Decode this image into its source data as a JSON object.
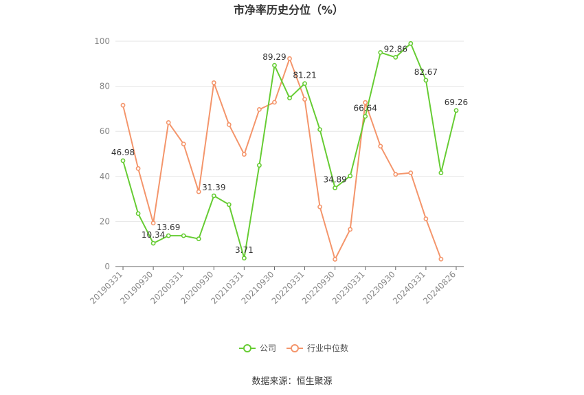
{
  "chart_data": {
    "type": "line",
    "title": "市净率历史分位（%）",
    "xlabel": "",
    "ylabel": "",
    "ylim": [
      0,
      100
    ],
    "yticks": [
      0,
      20,
      40,
      60,
      80,
      100
    ],
    "x": [
      "20190331",
      "20190630",
      "20190930",
      "20191231",
      "20200331",
      "20200630",
      "20200930",
      "20201231",
      "20210331",
      "20210630",
      "20210930",
      "20211231",
      "20220331",
      "20220630",
      "20220930",
      "20221231",
      "20230331",
      "20230630",
      "20230930",
      "20231231",
      "20240331",
      "20240630",
      "20240826"
    ],
    "xtick_labels": [
      "20190331",
      "20190930",
      "20200331",
      "20200930",
      "20210331",
      "20210930",
      "20220331",
      "20220930",
      "20230331",
      "20230930",
      "20240331",
      "20240826"
    ],
    "series": [
      {
        "name": "公司",
        "color": "#66cc33",
        "values": [
          46.98,
          23.5,
          10.34,
          13.69,
          13.69,
          12.3,
          31.39,
          27.5,
          3.71,
          44.9,
          89.29,
          74.8,
          81.21,
          60.8,
          34.89,
          40.2,
          66.64,
          95.0,
          92.86,
          99.0,
          82.67,
          41.6,
          69.26
        ],
        "labels": {
          "0": "46.98",
          "2": "10.34",
          "3": "13.69",
          "6": "31.39",
          "8": "3.71",
          "10": "89.29",
          "12": "81.21",
          "14": "34.89",
          "16": "66.64",
          "18": "92.86",
          "20": "82.67",
          "22": "69.26"
        }
      },
      {
        "name": "行业中位数",
        "color": "#f4956b",
        "values": [
          71.6,
          43.5,
          19.3,
          63.9,
          54.4,
          33.2,
          81.6,
          63.0,
          49.8,
          69.7,
          72.9,
          92.3,
          74.2,
          26.5,
          3.2,
          16.5,
          72.8,
          53.4,
          40.9,
          41.6,
          21.2,
          3.3,
          null
        ]
      }
    ],
    "legend_position": "bottom",
    "grid": true
  },
  "source_text": "数据来源：恒生聚源"
}
